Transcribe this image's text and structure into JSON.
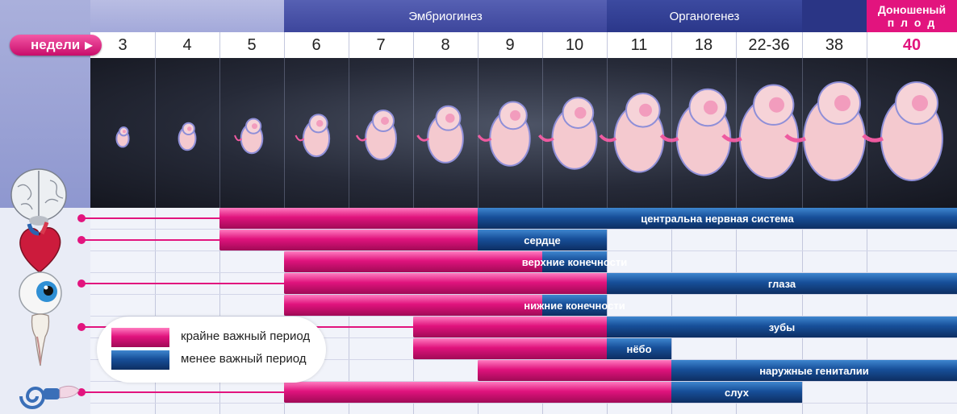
{
  "phases": [
    {
      "label": "Эмбриогинез"
    },
    {
      "label": "Органогенез"
    },
    {
      "label": "Доношеный",
      "label2": "п л о д"
    }
  ],
  "weeks_label": "недели",
  "weeks": [
    "3",
    "4",
    "5",
    "6",
    "7",
    "8",
    "9",
    "10",
    "11",
    "18",
    "22-36",
    "38",
    "40"
  ],
  "bars": [
    {
      "label": "центральна нервная система",
      "start_week": "5",
      "critical_until": "8",
      "end_week": "40"
    },
    {
      "label": "сердце",
      "start_week": "5",
      "critical_until": "8",
      "end_week": "10"
    },
    {
      "label": "верхние конечности",
      "start_week": "6",
      "critical_until": "9",
      "end_week": "10"
    },
    {
      "label": "глаза",
      "start_week": "6",
      "critical_until": "10",
      "end_week": "40"
    },
    {
      "label": "нижние конечности",
      "start_week": "6",
      "critical_until": "9",
      "end_week": "10"
    },
    {
      "label": "зубы",
      "start_week": "8",
      "critical_until": "10",
      "end_week": "40"
    },
    {
      "label": "нёбо",
      "start_week": "8",
      "critical_until": "10",
      "end_week": "11"
    },
    {
      "label": "наружные гениталии",
      "start_week": "9",
      "critical_until": "11",
      "end_week": "40"
    },
    {
      "label": "слух",
      "start_week": "6",
      "critical_until": "11",
      "end_week": "22-36"
    }
  ],
  "legend": {
    "critical": "крайне важный период",
    "less": "менее важный период"
  },
  "organ_icons": [
    "brain-icon",
    "heart-icon",
    "eye-icon",
    "tooth-icon",
    "ear-icon"
  ],
  "colors": {
    "critical": "#e2147e",
    "less": "#174f99",
    "accent": "#e2147e"
  }
}
